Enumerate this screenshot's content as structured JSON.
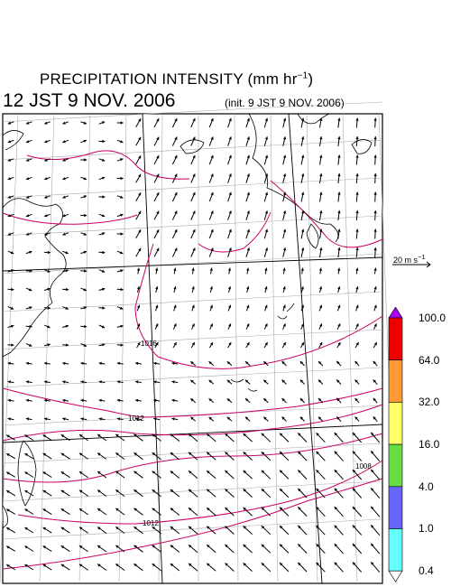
{
  "header": {
    "title_main": "PRECIPITATION INTENSITY (mm hr",
    "title_sup": "−1",
    "title_end": ")",
    "valid_time": "12 JST 9 NOV. 2006",
    "init_time": "(init. 9 JST 9 NOV. 2006)"
  },
  "reference_vector": {
    "label": "20 m s",
    "unit_sup": "−1"
  },
  "isobars": [
    {
      "label": "1016"
    },
    {
      "label": "1012"
    },
    {
      "label": "1008"
    },
    {
      "label": "1012"
    }
  ],
  "colorbar": {
    "ticks": [
      "100.0",
      "64.0",
      "32.0",
      "16.0",
      "4.0",
      "1.0",
      "0.4"
    ],
    "colors": [
      "#ee0000",
      "#ff9933",
      "#ffff66",
      "#66dd44",
      "#6666ff",
      "#66ffff"
    ],
    "over_color": "#aa00ee",
    "under_color": "#ffffff"
  },
  "styling": {
    "isobar_color": "#cc0066",
    "wind_color": "#000000"
  }
}
